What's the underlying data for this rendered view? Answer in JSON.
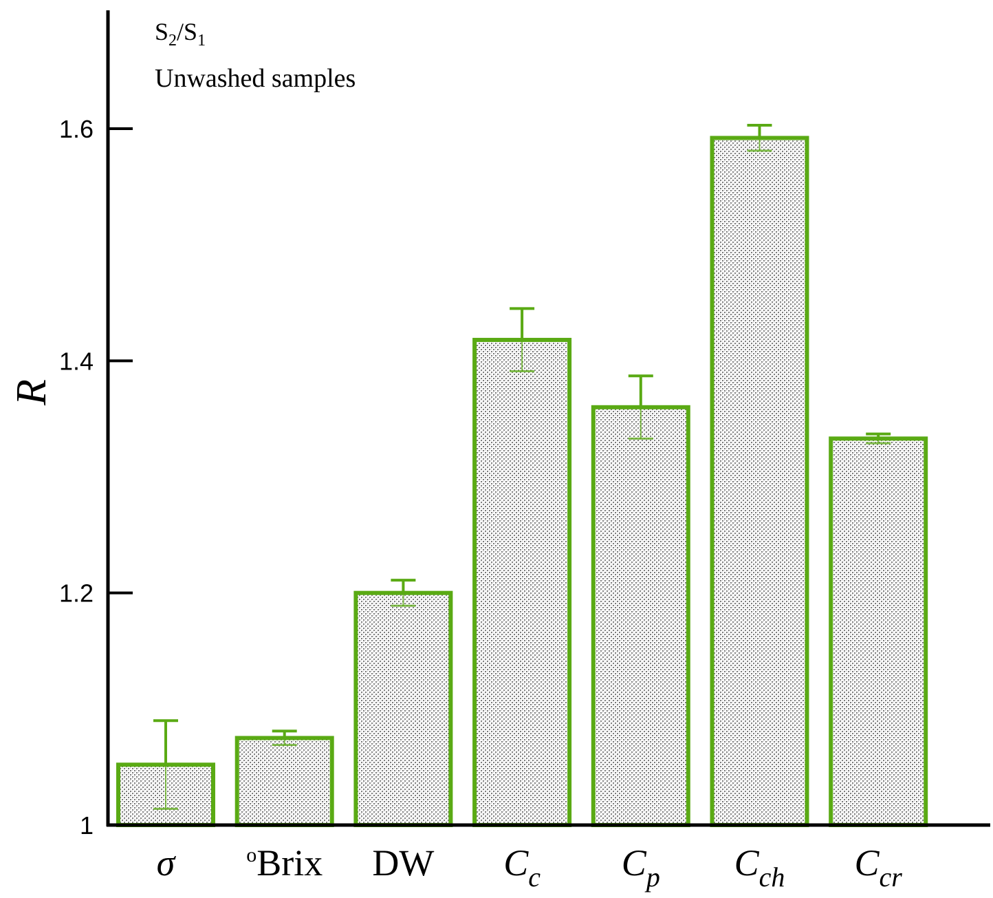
{
  "chart_data": {
    "type": "bar",
    "annotations": {
      "ratio_main": "S",
      "ratio_sub1": "2",
      "ratio_slash": "/S",
      "ratio_sub2": "1",
      "subtitle": "Unwashed samples"
    },
    "ylabel": "R",
    "xlabel": "",
    "ylim": [
      1.0,
      1.6
    ],
    "yticks": [
      {
        "value": 1.0,
        "label": "1"
      },
      {
        "value": 1.2,
        "label": "1.2"
      },
      {
        "value": 1.4,
        "label": "1.4"
      },
      {
        "value": 1.6,
        "label": "1.6"
      }
    ],
    "categories": [
      {
        "main": "σ",
        "sub": "",
        "sup": "",
        "italic": true
      },
      {
        "main": "Brix",
        "sub": "",
        "sup": "o",
        "italic": false
      },
      {
        "main": "DW",
        "sub": "",
        "sup": "",
        "italic": false
      },
      {
        "main": "C",
        "sub": "c",
        "sup": "",
        "italic": true
      },
      {
        "main": "C",
        "sub": "p",
        "sup": "",
        "italic": true
      },
      {
        "main": "C",
        "sub": "ch",
        "sup": "",
        "italic": true
      },
      {
        "main": "C",
        "sub": "cr",
        "sup": "",
        "italic": true
      }
    ],
    "values": [
      1.052,
      1.075,
      1.2,
      1.418,
      1.36,
      1.592,
      1.333
    ],
    "errors": [
      0.038,
      0.006,
      0.011,
      0.027,
      0.027,
      0.011,
      0.004
    ],
    "colors": {
      "bar_edge": "#5aaa14",
      "bar_fill_pattern": "#9a9a9a",
      "axis": "#000000"
    },
    "grid": false
  }
}
